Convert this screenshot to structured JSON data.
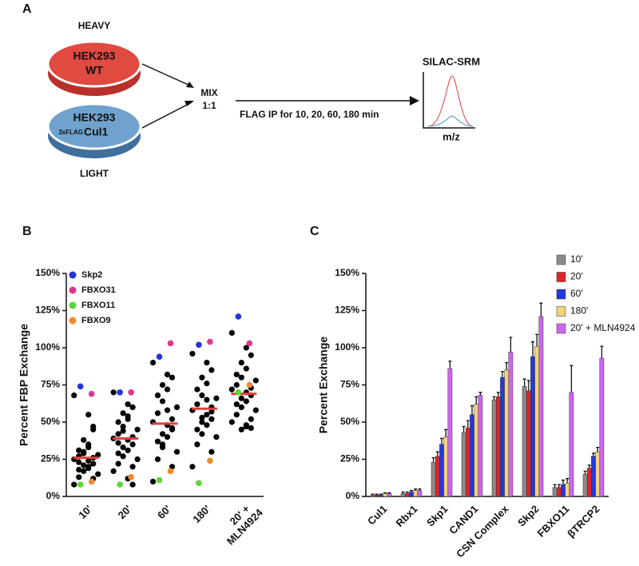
{
  "panel_labels": [
    "A",
    "B",
    "C"
  ],
  "diagram": {
    "heavy": "HEAVY",
    "heavy_dish": [
      "HEK293",
      "WT"
    ],
    "light": "LIGHT",
    "light_dish": [
      "HEK293",
      "3xFLAG",
      "Cul1"
    ],
    "mix": [
      "MIX",
      "1:1"
    ],
    "step": "FLAG IP for 10, 20, 60, 180 min",
    "readout": "SILAC-SRM",
    "readout_axis": "m/z"
  },
  "chart_data": [
    {
      "type": "strip",
      "ylabel": "Percent  FBP Exchange",
      "categories": [
        "10'",
        "20'",
        "60'",
        "180'",
        "20' + MLN4924"
      ],
      "points": [
        [
          68,
          55,
          47,
          38,
          33,
          31,
          30,
          28,
          27,
          26,
          25,
          24,
          22,
          21,
          20,
          18,
          17,
          15,
          13,
          12,
          8,
          35,
          45,
          29,
          19,
          23
        ],
        [
          70,
          62,
          60,
          56,
          54,
          50,
          47,
          45,
          42,
          40,
          39,
          38,
          35,
          33,
          31,
          29,
          27,
          25,
          22,
          20,
          17,
          12,
          8,
          44,
          52,
          36
        ],
        [
          90,
          82,
          80,
          75,
          72,
          68,
          64,
          60,
          56,
          52,
          50,
          48,
          45,
          42,
          40,
          37,
          35,
          30,
          25,
          20,
          10,
          58,
          46,
          33
        ],
        [
          96,
          90,
          85,
          80,
          76,
          72,
          68,
          66,
          62,
          60,
          58,
          55,
          52,
          50,
          48,
          45,
          42,
          40,
          35,
          30,
          20,
          65,
          57,
          53
        ],
        [
          110,
          100,
          95,
          90,
          86,
          82,
          80,
          78,
          75,
          73,
          72,
          70,
          68,
          66,
          64,
          62,
          60,
          58,
          55,
          52,
          50,
          48,
          46,
          45,
          47
        ]
      ],
      "point_color": "#000000",
      "medians": [
        26,
        39,
        49,
        59,
        69
      ],
      "median_color": "#e0413a",
      "series": [
        {
          "name": "Skp2",
          "color": "#2432e0",
          "values": [
            74,
            70,
            94,
            102,
            121
          ]
        },
        {
          "name": "FBXO31",
          "color": "#e0358a",
          "values": [
            69,
            70,
            103,
            104,
            103
          ]
        },
        {
          "name": "FBXO11",
          "color": "#5fd43a",
          "values": [
            8,
            8,
            11,
            9,
            70
          ]
        },
        {
          "name": "FBXO9",
          "color": "#ef8a2e",
          "values": [
            10,
            13,
            17,
            24,
            75
          ]
        }
      ],
      "ylim": [
        0,
        150
      ],
      "yticks": [
        {
          "value": 0,
          "label": "0%"
        },
        {
          "value": 25,
          "label": "25%"
        },
        {
          "value": 50,
          "label": "50%"
        },
        {
          "value": 75,
          "label": "75%"
        },
        {
          "value": 100,
          "label": "100%"
        },
        {
          "value": 125,
          "label": "125%"
        },
        {
          "value": 150,
          "label": "150%"
        }
      ]
    },
    {
      "type": "bar",
      "ylabel": "Percent  Exchange",
      "categories": [
        "Cul1",
        "Rbx1",
        "Skp1",
        "CAND1",
        "CSN Complex",
        "Skp2",
        "FBXO11",
        "βTRCP2"
      ],
      "series": [
        {
          "name": "10'",
          "color": "#8a8a8a",
          "values": [
            1,
            2,
            23,
            43,
            65,
            74,
            6,
            15
          ],
          "errors": [
            0.5,
            1,
            3,
            4,
            2,
            5,
            2,
            2
          ]
        },
        {
          "name": "20'",
          "color": "#e02424",
          "values": [
            1,
            2,
            27,
            46,
            67,
            71,
            6,
            19
          ],
          "errors": [
            0.5,
            1,
            3,
            5,
            3,
            7,
            2,
            2
          ]
        },
        {
          "name": "60'",
          "color": "#2438e0",
          "values": [
            1,
            3,
            35,
            55,
            80,
            94,
            8,
            27
          ],
          "errors": [
            0.5,
            1,
            4,
            6,
            4,
            10,
            3,
            2
          ]
        },
        {
          "name": "180'",
          "color": "#f3d27a",
          "values": [
            2,
            4,
            40,
            62,
            85,
            101,
            9,
            30
          ],
          "errors": [
            0.5,
            1,
            5,
            5,
            5,
            8,
            3,
            3
          ]
        },
        {
          "name": "20' + MLN4924",
          "color": "#cc66ee",
          "values": [
            2,
            4,
            86,
            68,
            97,
            121,
            70,
            93
          ],
          "errors": [
            0.5,
            1,
            5,
            2,
            10,
            9,
            18,
            8
          ]
        }
      ],
      "ylim": [
        0,
        150
      ],
      "yticks": [
        {
          "value": 0,
          "label": "0%"
        },
        {
          "value": 25,
          "label": "25%"
        },
        {
          "value": 50,
          "label": "50%"
        },
        {
          "value": 75,
          "label": "75%"
        },
        {
          "value": 100,
          "label": "100%"
        },
        {
          "value": 125,
          "label": "125%"
        },
        {
          "value": 150,
          "label": "150%"
        }
      ]
    }
  ]
}
